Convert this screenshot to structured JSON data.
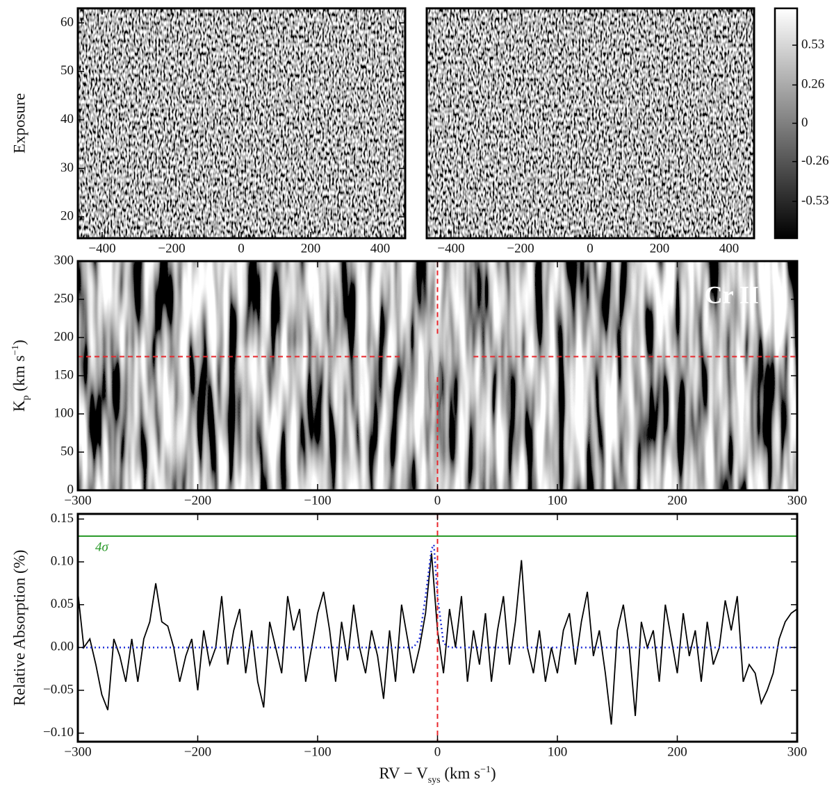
{
  "chart_data": [
    {
      "type": "heatmap",
      "xlim": [
        -470,
        472
      ],
      "xticks": [
        {
          "value": -400,
          "label": "−400"
        },
        {
          "value": -200,
          "label": "−200"
        },
        0,
        200,
        400
      ],
      "ylim": [
        15.6,
        63
      ],
      "yticks": [
        20,
        30,
        40,
        50,
        60
      ],
      "ylabel": "Exposure"
    },
    {
      "type": "heatmap",
      "xlim": [
        -470,
        472
      ],
      "xticks": [
        {
          "value": -400,
          "label": "−400"
        },
        {
          "value": -200,
          "label": "−200"
        },
        0,
        200,
        400
      ],
      "ylim": [
        15.6,
        63
      ],
      "colorbar": {
        "lim": [
          -0.78,
          0.78
        ],
        "ticks": [
          0.53,
          0.26,
          0,
          -0.26,
          -0.53
        ]
      }
    },
    {
      "type": "kp_map",
      "xlim": [
        -300,
        300
      ],
      "xticks": [
        {
          "value": -300,
          "label": "−300"
        },
        {
          "value": -200,
          "label": "−200"
        },
        {
          "value": -100,
          "label": "−100"
        },
        0,
        100,
        200,
        300
      ],
      "ylim": [
        0,
        300
      ],
      "yticks": [
        0,
        50,
        100,
        150,
        200,
        250,
        300
      ],
      "ylabel": [
        "K",
        "p",
        " (km s",
        "−1",
        ")"
      ],
      "label": "Cr II",
      "hline": 175,
      "hline_gap": [
        -30,
        30
      ],
      "vline": 0,
      "vline_gap": [
        150,
        205
      ],
      "line_color": "#e8262b"
    },
    {
      "type": "line",
      "xlim": [
        -300,
        300
      ],
      "xticks": [
        {
          "value": -300,
          "label": "−300"
        },
        {
          "value": -200,
          "label": "−200"
        },
        {
          "value": -100,
          "label": "−100"
        },
        0,
        100,
        200,
        300
      ],
      "ylim": [
        -0.11,
        0.156
      ],
      "yticks": [
        {
          "value": -0.1,
          "label": "−0.10"
        },
        {
          "value": -0.05,
          "label": "−0.05"
        },
        {
          "value": 0,
          "label": "0.00"
        },
        0.05,
        {
          "value": 0.1,
          "label": "0.10"
        },
        0.15
      ],
      "xlabel": [
        "RV − V",
        "sys",
        " (km s",
        "−1",
        ")"
      ],
      "ylabel": "Relative Absorption (%)",
      "threshold": 0.13,
      "threshold_label": "4σ",
      "threshold_color": "#2a9a2a",
      "vline": 0,
      "vline_color": "#e8262b",
      "series": [
        {
          "color": "#000000",
          "x": [
            -300,
            -295,
            -290,
            -285,
            -280,
            -275,
            -270,
            -265,
            -260,
            -255,
            -250,
            -245,
            -240,
            -235,
            -230,
            -225,
            -220,
            -215,
            -210,
            -205,
            -200,
            -195,
            -190,
            -185,
            -180,
            -175,
            -170,
            -165,
            -160,
            -155,
            -150,
            -145,
            -140,
            -135,
            -130,
            -125,
            -120,
            -115,
            -110,
            -105,
            -100,
            -95,
            -90,
            -85,
            -80,
            -75,
            -70,
            -65,
            -60,
            -55,
            -50,
            -45,
            -40,
            -35,
            -30,
            -25,
            -20,
            -15,
            -10,
            -5,
            0,
            5,
            10,
            15,
            20,
            25,
            30,
            35,
            40,
            45,
            50,
            55,
            60,
            65,
            70,
            75,
            80,
            85,
            90,
            95,
            100,
            105,
            110,
            115,
            120,
            125,
            130,
            135,
            140,
            145,
            150,
            155,
            160,
            165,
            170,
            175,
            180,
            185,
            190,
            195,
            200,
            205,
            210,
            215,
            220,
            225,
            230,
            235,
            240,
            245,
            250,
            255,
            260,
            265,
            270,
            275,
            280,
            285,
            290,
            295,
            300
          ],
          "values": [
            0.065,
            0.0,
            0.01,
            -0.02,
            -0.055,
            -0.073,
            0.01,
            -0.01,
            -0.04,
            0.01,
            -0.04,
            0.01,
            0.03,
            0.075,
            0.03,
            0.025,
            0.0,
            -0.04,
            -0.01,
            0.01,
            -0.05,
            0.02,
            -0.02,
            0.0,
            0.06,
            -0.02,
            0.02,
            0.045,
            -0.03,
            0.02,
            -0.04,
            -0.07,
            0.03,
            0.0,
            -0.03,
            0.06,
            0.02,
            0.045,
            -0.04,
            0.0,
            0.04,
            0.065,
            0.02,
            -0.04,
            0.03,
            -0.015,
            0.05,
            0.0,
            -0.03,
            0.02,
            -0.01,
            -0.06,
            0.02,
            -0.04,
            0.05,
            0.01,
            -0.03,
            0.0,
            0.04,
            0.11,
            0.02,
            -0.03,
            0.045,
            0.0,
            0.06,
            -0.04,
            0.02,
            -0.02,
            0.04,
            -0.04,
            0.02,
            0.06,
            -0.02,
            0.03,
            0.102,
            0.0,
            -0.03,
            0.02,
            -0.04,
            0.0,
            -0.03,
            0.02,
            0.04,
            -0.02,
            0.03,
            0.065,
            -0.01,
            0.02,
            -0.03,
            -0.09,
            0.02,
            0.05,
            0.0,
            -0.08,
            0.03,
            0.0,
            0.02,
            -0.04,
            0.05,
            0.01,
            -0.03,
            0.04,
            -0.01,
            0.02,
            -0.04,
            0.03,
            -0.02,
            0.0,
            0.055,
            0.02,
            0.06,
            -0.04,
            -0.02,
            -0.03,
            -0.065,
            -0.05,
            -0.03,
            0.01,
            0.03,
            0.04,
            0.045
          ]
        },
        {
          "color": "#1f2fd8",
          "x": [
            -300,
            -20,
            -15,
            -10,
            -5,
            -3,
            0,
            5,
            10,
            300
          ],
          "values": [
            0,
            0,
            0.01,
            0.06,
            0.115,
            0.12,
            0.06,
            0.005,
            0,
            0
          ]
        }
      ]
    }
  ]
}
